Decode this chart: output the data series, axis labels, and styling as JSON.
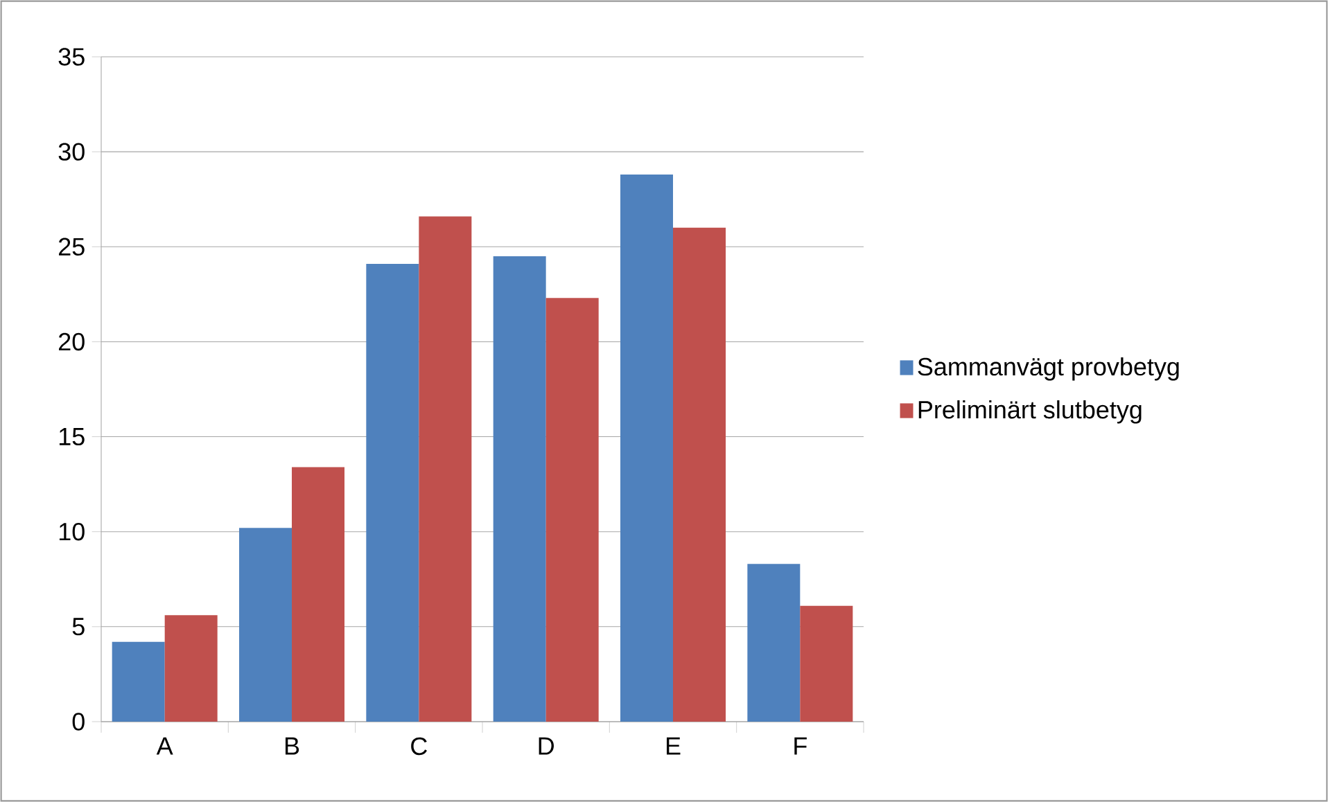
{
  "chart_data": {
    "type": "bar",
    "categories": [
      "A",
      "B",
      "C",
      "D",
      "E",
      "F"
    ],
    "series": [
      {
        "name": "Sammanvägt provbetyg",
        "color": "#4f81bd",
        "values": [
          4.2,
          10.2,
          24.1,
          24.5,
          28.8,
          8.3
        ]
      },
      {
        "name": "Preliminärt slutbetyg",
        "color": "#c0504d",
        "values": [
          5.6,
          13.4,
          26.6,
          22.3,
          26.0,
          6.1
        ]
      }
    ],
    "ylim": [
      0,
      35
    ],
    "yticks": [
      0,
      5,
      10,
      15,
      20,
      25,
      30,
      35
    ],
    "grid": "y",
    "legend": "right"
  }
}
